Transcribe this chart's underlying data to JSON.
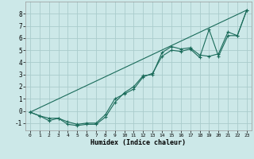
{
  "title": "",
  "xlabel": "Humidex (Indice chaleur)",
  "ylabel": "",
  "background_color": "#cce8e8",
  "grid_color": "#aacccc",
  "line_color": "#1a6b5a",
  "xlim": [
    -0.5,
    23.5
  ],
  "ylim": [
    -1.6,
    9.0
  ],
  "xticks": [
    0,
    1,
    2,
    3,
    4,
    5,
    6,
    7,
    8,
    9,
    10,
    11,
    12,
    13,
    14,
    15,
    16,
    17,
    18,
    19,
    20,
    21,
    22,
    23
  ],
  "yticks": [
    -1,
    0,
    1,
    2,
    3,
    4,
    5,
    6,
    7,
    8
  ],
  "line1_x": [
    0,
    1,
    2,
    3,
    4,
    5,
    6,
    7,
    8,
    9,
    10,
    11,
    12,
    13,
    14,
    15,
    16,
    17,
    18,
    19,
    20,
    21,
    22,
    23
  ],
  "line1_y": [
    -0.1,
    -0.4,
    -0.8,
    -0.6,
    -1.1,
    -1.2,
    -1.1,
    -1.1,
    -0.5,
    0.7,
    1.5,
    2.0,
    2.9,
    3.0,
    4.8,
    5.3,
    5.1,
    5.2,
    4.6,
    4.5,
    4.7,
    6.5,
    6.2,
    8.3
  ],
  "line2_x": [
    0,
    1,
    2,
    3,
    4,
    5,
    6,
    7,
    8,
    9,
    10,
    11,
    12,
    13,
    14,
    15,
    16,
    17,
    18,
    19,
    20,
    21,
    22,
    23
  ],
  "line2_y": [
    -0.1,
    -0.4,
    -0.6,
    -0.6,
    -0.9,
    -1.1,
    -1.0,
    -1.0,
    -0.3,
    1.0,
    1.4,
    1.8,
    2.8,
    3.1,
    4.5,
    5.0,
    4.9,
    5.1,
    4.4,
    6.7,
    4.5,
    6.2,
    6.2,
    8.3
  ],
  "line3_x": [
    0,
    23
  ],
  "line3_y": [
    -0.1,
    8.3
  ],
  "font_family": "monospace",
  "xlabel_fontsize": 6.0,
  "tick_fontsize_x": 4.5,
  "tick_fontsize_y": 5.5
}
